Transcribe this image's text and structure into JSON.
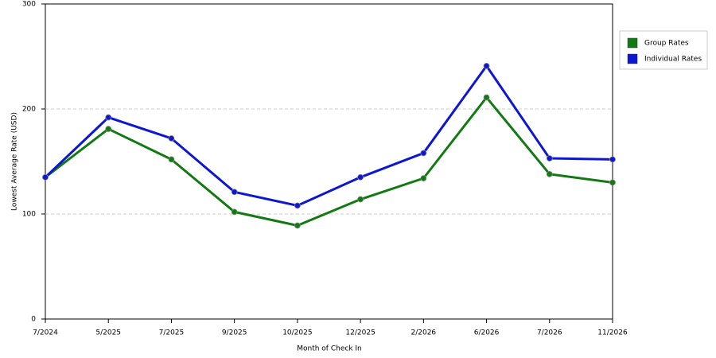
{
  "chart_data": {
    "type": "line",
    "x_label": "Month of Check In",
    "y_label": "Lowest Average Rate (USD)",
    "categories": [
      "7/2024",
      "5/2025",
      "7/2025",
      "9/2025",
      "10/2025",
      "12/2025",
      "2/2026",
      "6/2026",
      "7/2026",
      "11/2026"
    ],
    "series": [
      {
        "name": "Group Rates",
        "color": "#127a12",
        "values": [
          135,
          181,
          152,
          102,
          89,
          114,
          134,
          211,
          138,
          130
        ]
      },
      {
        "name": "Individual Rates",
        "color": "#0d16d0",
        "values": [
          135,
          192,
          172,
          121,
          108,
          135,
          158,
          241,
          153,
          152
        ]
      }
    ],
    "ylim": [
      0,
      300
    ],
    "yticks": [
      0,
      100,
      200,
      300
    ],
    "grid": true,
    "legend": "right"
  }
}
